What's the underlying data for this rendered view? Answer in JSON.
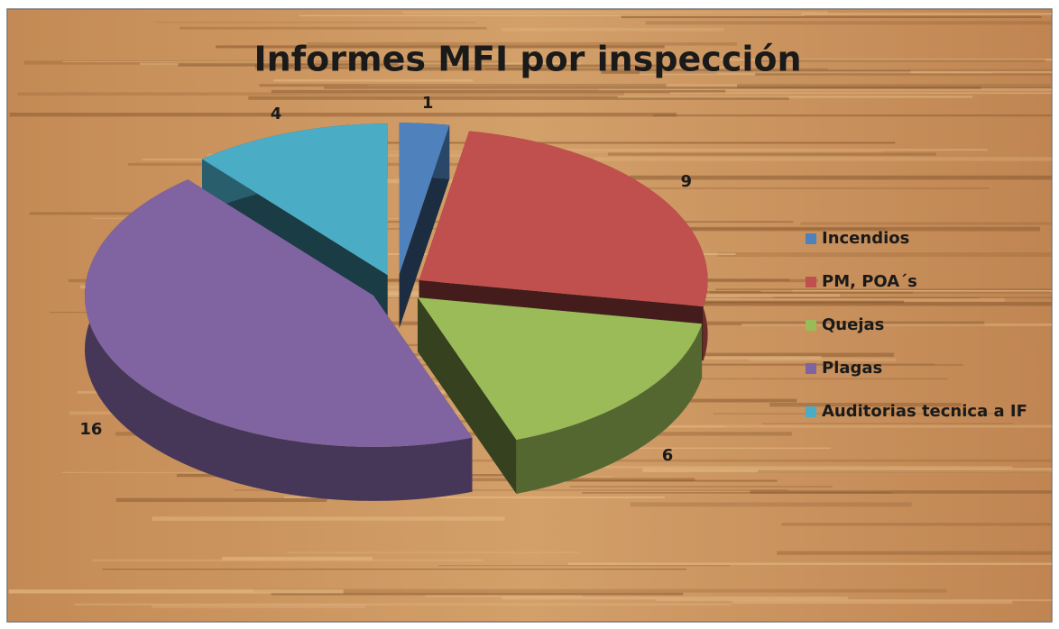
{
  "chart_data": {
    "type": "pie",
    "title": "Informes MFI por inspección",
    "categories": [
      "Incendios",
      "PM, POA´s",
      "Quejas",
      "Plagas",
      "Auditorias tecnica a IF"
    ],
    "values": [
      1,
      9,
      6,
      16,
      4
    ],
    "colors": [
      "#4f81bd",
      "#c0504d",
      "#9bbb59",
      "#8064a2",
      "#4bacc6"
    ],
    "legend": "right"
  }
}
